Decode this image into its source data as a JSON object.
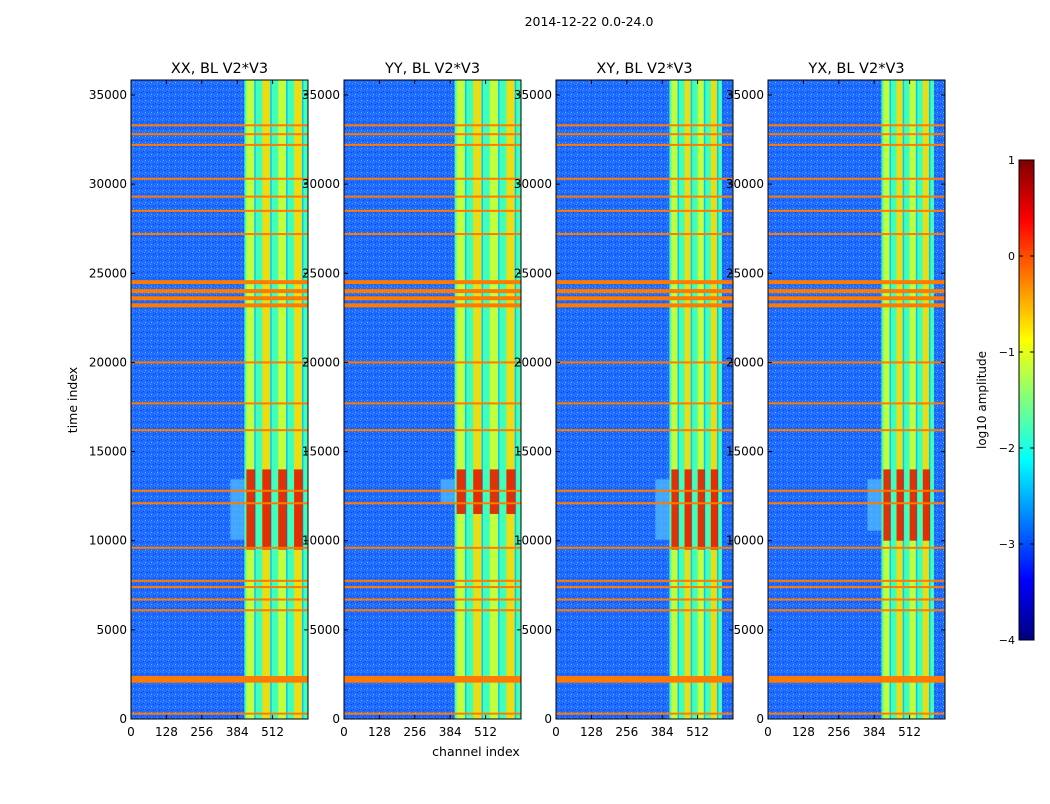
{
  "figure": {
    "suptitle": "2014-12-22 0.0-24.0",
    "ylabel": "time index",
    "xlabel": "channel index"
  },
  "colormap": "jet",
  "colors": {
    "background": "#00007f",
    "noise": "#1f6bff",
    "flag_row": "#ff7a00",
    "band_low": "#40ffb8",
    "band_mid": "#d0ff2f",
    "band_high": "#ffd800",
    "hot": "#e01000"
  },
  "chart_data": [
    {
      "type": "heatmap",
      "title": "XX, BL V2*V3",
      "x_range": [
        0,
        640
      ],
      "y_range": [
        0,
        35840
      ],
      "x_ticks": [
        0,
        128,
        256,
        384,
        512
      ],
      "y_ticks": [
        0,
        5000,
        10000,
        15000,
        20000,
        25000,
        30000,
        35000
      ],
      "bright_band_channels": [
        410,
        640
      ],
      "hot_time_range": [
        9500,
        14000
      ]
    },
    {
      "type": "heatmap",
      "title": "YY, BL V2*V3",
      "x_range": [
        0,
        640
      ],
      "y_range": [
        0,
        35840
      ],
      "x_ticks": [
        0,
        128,
        256,
        384,
        512
      ],
      "y_ticks": [
        0,
        5000,
        10000,
        15000,
        20000,
        25000,
        30000,
        35000
      ],
      "bright_band_channels": [
        400,
        640
      ],
      "hot_time_range": [
        11500,
        14000
      ]
    },
    {
      "type": "heatmap",
      "title": "XY, BL V2*V3",
      "x_range": [
        0,
        640
      ],
      "y_range": [
        0,
        35840
      ],
      "x_ticks": [
        0,
        128,
        256,
        384,
        512
      ],
      "y_ticks": [
        0,
        5000,
        10000,
        15000,
        20000,
        25000,
        30000,
        35000
      ],
      "bright_band_channels": [
        410,
        600
      ],
      "hot_time_range": [
        9500,
        14000
      ]
    },
    {
      "type": "heatmap",
      "title": "YX, BL V2*V3",
      "x_range": [
        0,
        640
      ],
      "y_range": [
        0,
        35840
      ],
      "x_ticks": [
        0,
        128,
        256,
        384,
        512
      ],
      "y_ticks": [
        0,
        5000,
        10000,
        15000,
        20000,
        25000,
        30000,
        35000
      ],
      "bright_band_channels": [
        410,
        600
      ],
      "hot_time_range": [
        10000,
        14000
      ]
    }
  ],
  "flagged_time_indices": [
    300,
    2150,
    2300,
    6100,
    6700,
    7400,
    7750,
    9600,
    12100,
    12800,
    16200,
    17700,
    20000,
    23200,
    23600,
    24000,
    24500,
    27200,
    28500,
    29300,
    30300,
    32200,
    32800,
    33300
  ],
  "colorbar": {
    "label": "log10 amplitude",
    "range": [
      -4,
      1
    ],
    "ticks": [
      1,
      0,
      -1,
      -2,
      -3,
      -4
    ]
  }
}
